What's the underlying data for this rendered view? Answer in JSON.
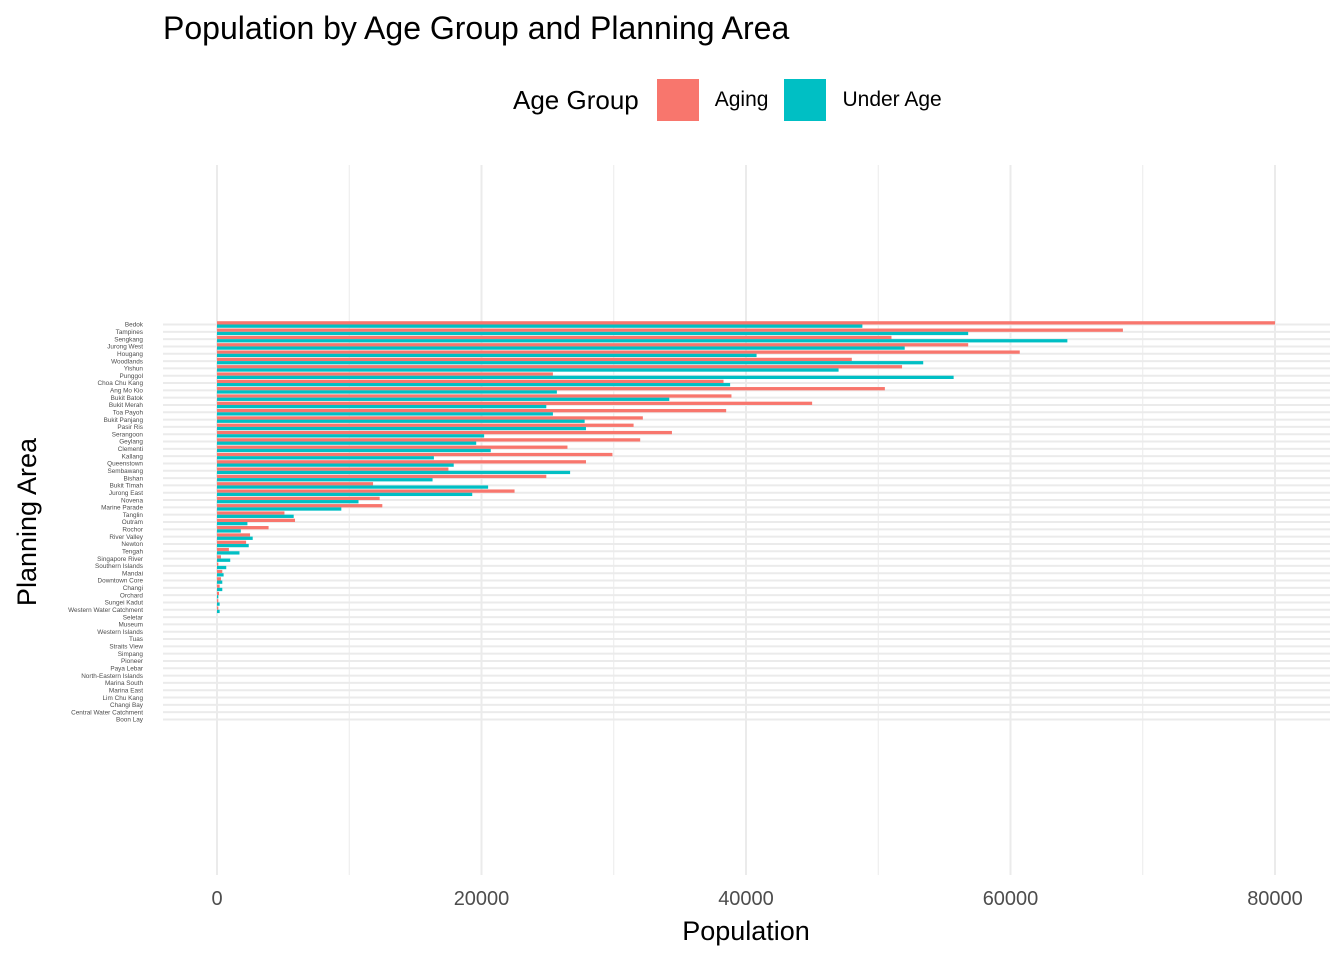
{
  "chart_data": {
    "type": "bar",
    "orientation": "horizontal",
    "title": "Population by Age Group and Planning Area",
    "xlabel": "Population",
    "ylabel": "Planning Area",
    "xlim": [
      -4000,
      84000
    ],
    "xticks": [
      0,
      20000,
      40000,
      60000,
      80000
    ],
    "xtick_labels": [
      "0",
      "20000",
      "40000",
      "60000",
      "80000"
    ],
    "grid": true,
    "legend": {
      "title": "Age Group",
      "position": "top"
    },
    "categories": [
      "Bedok",
      "Tampines",
      "Sengkang",
      "Jurong West",
      "Hougang",
      "Woodlands",
      "Yishun",
      "Punggol",
      "Choa Chu Kang",
      "Ang Mo Kio",
      "Bukit Batok",
      "Bukit Merah",
      "Toa Payoh",
      "Bukit Panjang",
      "Pasir Ris",
      "Serangoon",
      "Geylang",
      "Clementi",
      "Kallang",
      "Queenstown",
      "Sembawang",
      "Bishan",
      "Bukit Timah",
      "Jurong East",
      "Novena",
      "Marine Parade",
      "Tanglin",
      "Outram",
      "Rochor",
      "River Valley",
      "Newton",
      "Tengah",
      "Singapore River",
      "Southern Islands",
      "Mandai",
      "Downtown Core",
      "Changi",
      "Orchard",
      "Sungei Kadut",
      "Western Water Catchment",
      "Seletar",
      "Museum",
      "Western Islands",
      "Tuas",
      "Straits View",
      "Simpang",
      "Pioneer",
      "Paya Lebar",
      "North-Eastern Islands",
      "Marina South",
      "Marina East",
      "Lim Chu Kang",
      "Changi Bay",
      "Central Water Catchment",
      "Boon Lay"
    ],
    "series": [
      {
        "name": "Aging",
        "color": "#F8766D",
        "values": [
          80000,
          68500,
          51000,
          56800,
          60700,
          48000,
          51800,
          25400,
          38300,
          50500,
          38900,
          45000,
          38500,
          32200,
          31500,
          34400,
          32000,
          26500,
          29900,
          27900,
          17500,
          24900,
          11800,
          22500,
          12300,
          12500,
          5100,
          5900,
          3900,
          2500,
          2200,
          900,
          300,
          100,
          400,
          300,
          200,
          150,
          100,
          100,
          0,
          0,
          0,
          0,
          0,
          0,
          0,
          0,
          0,
          0,
          0,
          0,
          0,
          0,
          0
        ]
      },
      {
        "name": "Under Age",
        "color": "#00BFC4",
        "values": [
          48800,
          56800,
          64300,
          52000,
          40800,
          53400,
          47000,
          55700,
          38800,
          25700,
          34200,
          24900,
          25400,
          27800,
          27900,
          20200,
          19600,
          20700,
          16400,
          17900,
          26700,
          16300,
          20500,
          19300,
          10700,
          9400,
          5800,
          2300,
          1800,
          2700,
          2400,
          1700,
          1000,
          700,
          500,
          400,
          400,
          100,
          200,
          200,
          0,
          0,
          0,
          0,
          0,
          0,
          0,
          0,
          0,
          0,
          0,
          0,
          0,
          0,
          0
        ]
      }
    ]
  }
}
